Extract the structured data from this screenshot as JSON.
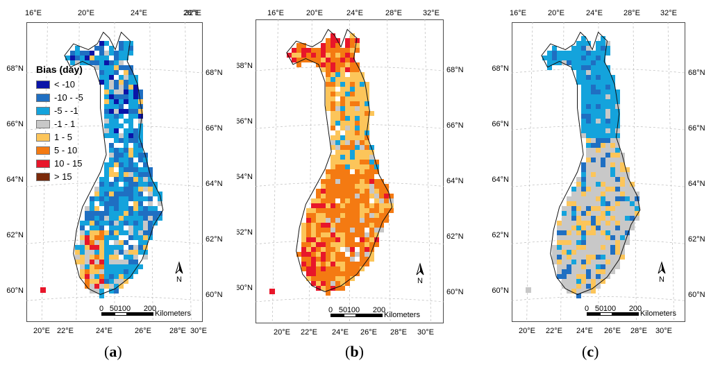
{
  "lon_ticks_top": [
    "16°E",
    "20°E",
    "24°E",
    "28°E",
    "32°E"
  ],
  "lon_ticks_bottom": [
    "20°E",
    "22°E",
    "24°E",
    "26°E",
    "28°E",
    "30°E"
  ],
  "lat_ticks_left": [
    "68°N",
    "66°N",
    "64°N",
    "62°N",
    "60°N"
  ],
  "lat_ticks_right": [
    "68°N",
    "66°N",
    "64°N",
    "62°N",
    "60°N"
  ],
  "north_arrow": "N",
  "scale_bar": {
    "ticks": [
      "0",
      "50",
      "100",
      "200"
    ],
    "unit": "Kilometers"
  },
  "legend": {
    "title": "Bias (day)",
    "items": [
      {
        "label": "< -10",
        "color": "#0a14a8"
      },
      {
        "label": "-10 - -5",
        "color": "#1f6fc2"
      },
      {
        "label": "-5 - -1",
        "color": "#14a3dc"
      },
      {
        "label": "-1 - 1",
        "color": "#c8c8c8"
      },
      {
        "label": "1 - 5",
        "color": "#fcc55a"
      },
      {
        "label": "5 - 10",
        "color": "#f47a12"
      },
      {
        "label": "10 - 15",
        "color": "#e8162a"
      },
      {
        "label": "> 15",
        "color": "#7a2a0a"
      }
    ]
  },
  "panels": [
    {
      "id": "a",
      "caption": "a"
    },
    {
      "id": "b",
      "caption": "b"
    },
    {
      "id": "c",
      "caption": "c"
    }
  ]
}
